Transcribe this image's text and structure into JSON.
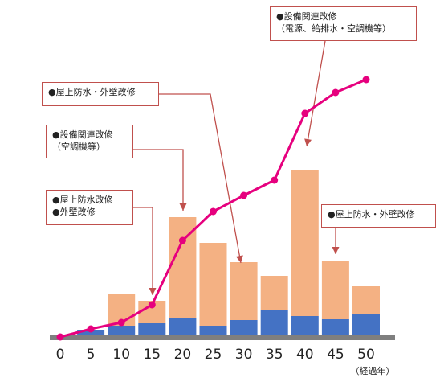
{
  "chart_data": {
    "type": "bar",
    "x": [
      0,
      5,
      10,
      15,
      20,
      25,
      30,
      35,
      40,
      45,
      50
    ],
    "x_unit_label": "（経過年）",
    "series": [
      {
        "kind": "bar-stack-bottom",
        "color": "#4472c4",
        "values": [
          0,
          9,
          14,
          17,
          24,
          14,
          21,
          33,
          26,
          22,
          29
        ]
      },
      {
        "kind": "bar-stack-top",
        "color": "#f4b183",
        "values": [
          0,
          0,
          39,
          28,
          125,
          103,
          72,
          43,
          182,
          73,
          34
        ]
      },
      {
        "kind": "line",
        "color": "#e6007e",
        "values": [
          0,
          10,
          18,
          40,
          120,
          156,
          176,
          195,
          278,
          304,
          320
        ]
      }
    ],
    "ylim": [
      0,
      340
    ],
    "grid": false,
    "legend": "none"
  },
  "callouts": [
    {
      "lines": [
        "●屋上防水・外壁改修"
      ]
    },
    {
      "lines": [
        "●設備関連改修",
        "（空調機等）"
      ]
    },
    {
      "lines": [
        "●屋上防水改修",
        "●外壁改修"
      ]
    },
    {
      "lines": [
        "●設備関連改修",
        "（電源、給排水・空調機等）"
      ]
    },
    {
      "lines": [
        "●屋上防水・外壁改修"
      ]
    }
  ]
}
